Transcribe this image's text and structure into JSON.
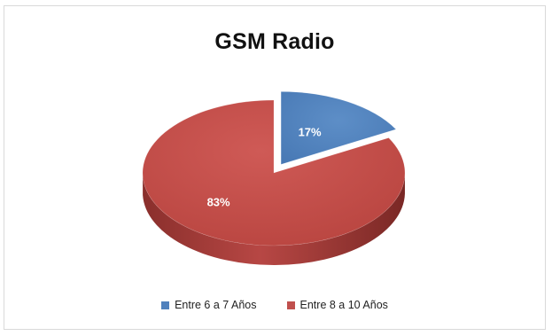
{
  "chart_data": {
    "type": "pie",
    "title": "GSM Radio",
    "categories": [
      "Entre 6 a 7 Años",
      "Entre  8 a 10 Años"
    ],
    "values": [
      17,
      83
    ],
    "data_labels": [
      "17%",
      "83%"
    ],
    "colors": [
      "#4f81bd",
      "#c0504d"
    ],
    "exploded": [
      true,
      false
    ],
    "style": "3d",
    "legend_position": "bottom"
  }
}
